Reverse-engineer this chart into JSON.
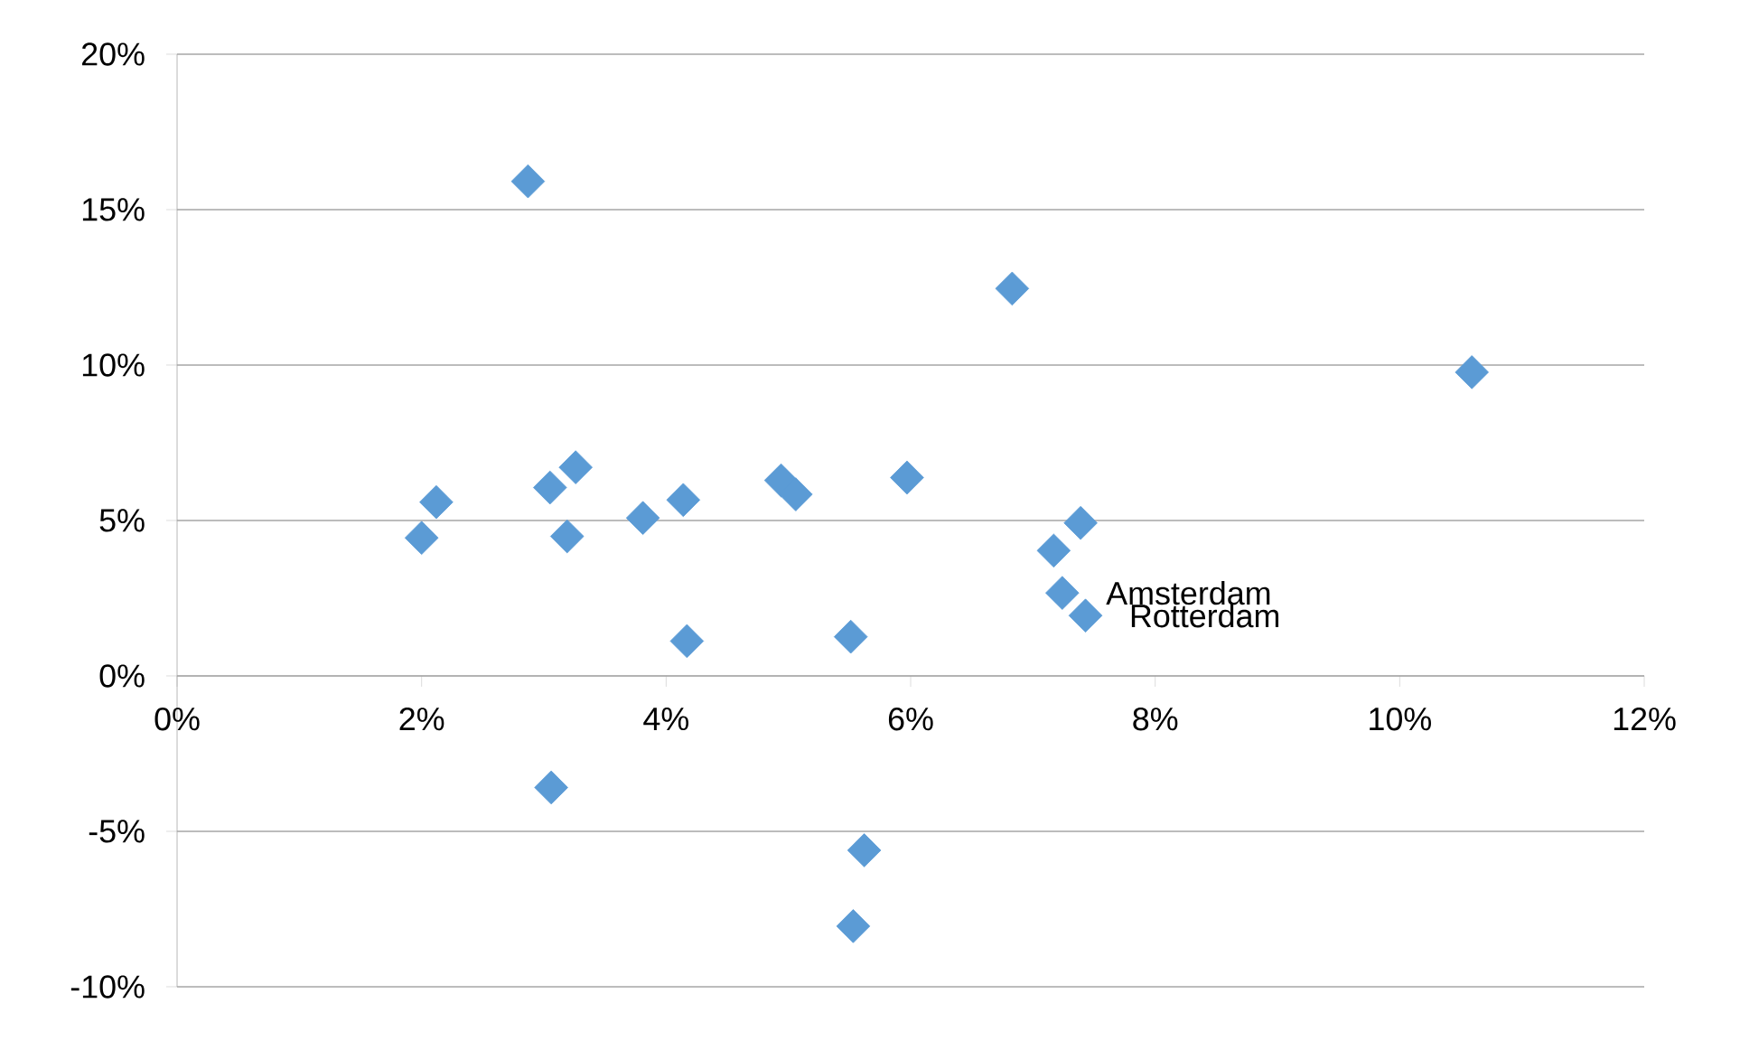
{
  "chart_data": {
    "type": "scatter",
    "marker": "diamond",
    "grid": "y",
    "xlim": [
      0,
      12
    ],
    "ylim": [
      -10,
      20
    ],
    "xticks": [
      {
        "value": 0,
        "label": "0%"
      },
      {
        "value": 2,
        "label": "2%"
      },
      {
        "value": 4,
        "label": "4%"
      },
      {
        "value": 6,
        "label": "6%"
      },
      {
        "value": 8,
        "label": "8%"
      },
      {
        "value": 10,
        "label": "10%"
      },
      {
        "value": 12,
        "label": "12%"
      }
    ],
    "yticks": [
      {
        "value": -10,
        "label": "-10%"
      },
      {
        "value": -5,
        "label": "-5%"
      },
      {
        "value": 0,
        "label": "0%"
      },
      {
        "value": 5,
        "label": "5%"
      },
      {
        "value": 10,
        "label": "10%"
      },
      {
        "value": 15,
        "label": "15%"
      },
      {
        "value": 20,
        "label": "20%"
      }
    ],
    "series": [
      {
        "color": "#5b9bd5",
        "x": [
          2.0,
          2.12,
          2.87,
          3.05,
          3.26,
          3.19,
          3.06,
          3.81,
          4.14,
          4.17,
          4.94,
          5.06,
          5.97,
          5.51,
          5.62,
          5.53,
          6.83,
          10.59,
          7.39,
          7.17,
          7.24,
          7.43
        ],
        "values": [
          4.44,
          5.59,
          15.91,
          6.06,
          6.71,
          4.49,
          -3.59,
          5.08,
          5.66,
          1.12,
          6.29,
          5.84,
          6.38,
          1.26,
          -5.61,
          -8.05,
          12.46,
          9.77,
          4.92,
          4.03,
          2.67,
          1.94
        ]
      }
    ],
    "annotations": [
      {
        "text": "Amsterdam",
        "x": 7.24,
        "y": 2.67
      },
      {
        "text": "Rotterdam",
        "x": 7.43,
        "y": 1.94
      }
    ]
  }
}
